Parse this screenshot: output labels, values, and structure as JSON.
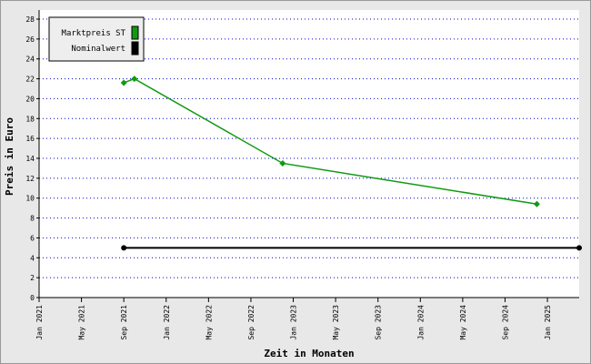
{
  "chart_data": {
    "type": "line",
    "x_label": "Zeit in Monaten",
    "y_label": "Preis in Euro",
    "series": [
      {
        "name": "Marktpreis ST",
        "color": "#119911",
        "x": [
          "2021-09",
          "2021-10",
          "2022-12",
          "2024-12"
        ],
        "values": [
          21.6,
          22.0,
          13.5,
          9.4
        ]
      },
      {
        "name": "Nominalwert",
        "color": "#000000",
        "x": [
          "2021-09",
          "2025-04"
        ],
        "values": [
          5,
          5
        ]
      }
    ],
    "xlim": [
      "2021-01",
      "2025-04"
    ],
    "xticks": [
      {
        "value": "2021-01",
        "label": "Jan 2021"
      },
      {
        "value": "2021-05",
        "label": "May 2021"
      },
      {
        "value": "2021-09",
        "label": "Sep 2021"
      },
      {
        "value": "2022-01",
        "label": "Jan 2022"
      },
      {
        "value": "2022-05",
        "label": "May 2022"
      },
      {
        "value": "2022-09",
        "label": "Sep 2022"
      },
      {
        "value": "2023-01",
        "label": "Jan 2023"
      },
      {
        "value": "2023-05",
        "label": "May 2023"
      },
      {
        "value": "2023-09",
        "label": "Sep 2023"
      },
      {
        "value": "2024-01",
        "label": "Jan 2024"
      },
      {
        "value": "2024-05",
        "label": "May 2024"
      },
      {
        "value": "2024-09",
        "label": "Sep 2024"
      },
      {
        "value": "2025-01",
        "label": "Jan 2025"
      }
    ],
    "ylim": [
      0,
      28
    ],
    "yticks": [
      0,
      2,
      4,
      6,
      8,
      10,
      12,
      14,
      16,
      18,
      20,
      22,
      24,
      26,
      28
    ],
    "grid": true,
    "legend": "upper-left"
  }
}
